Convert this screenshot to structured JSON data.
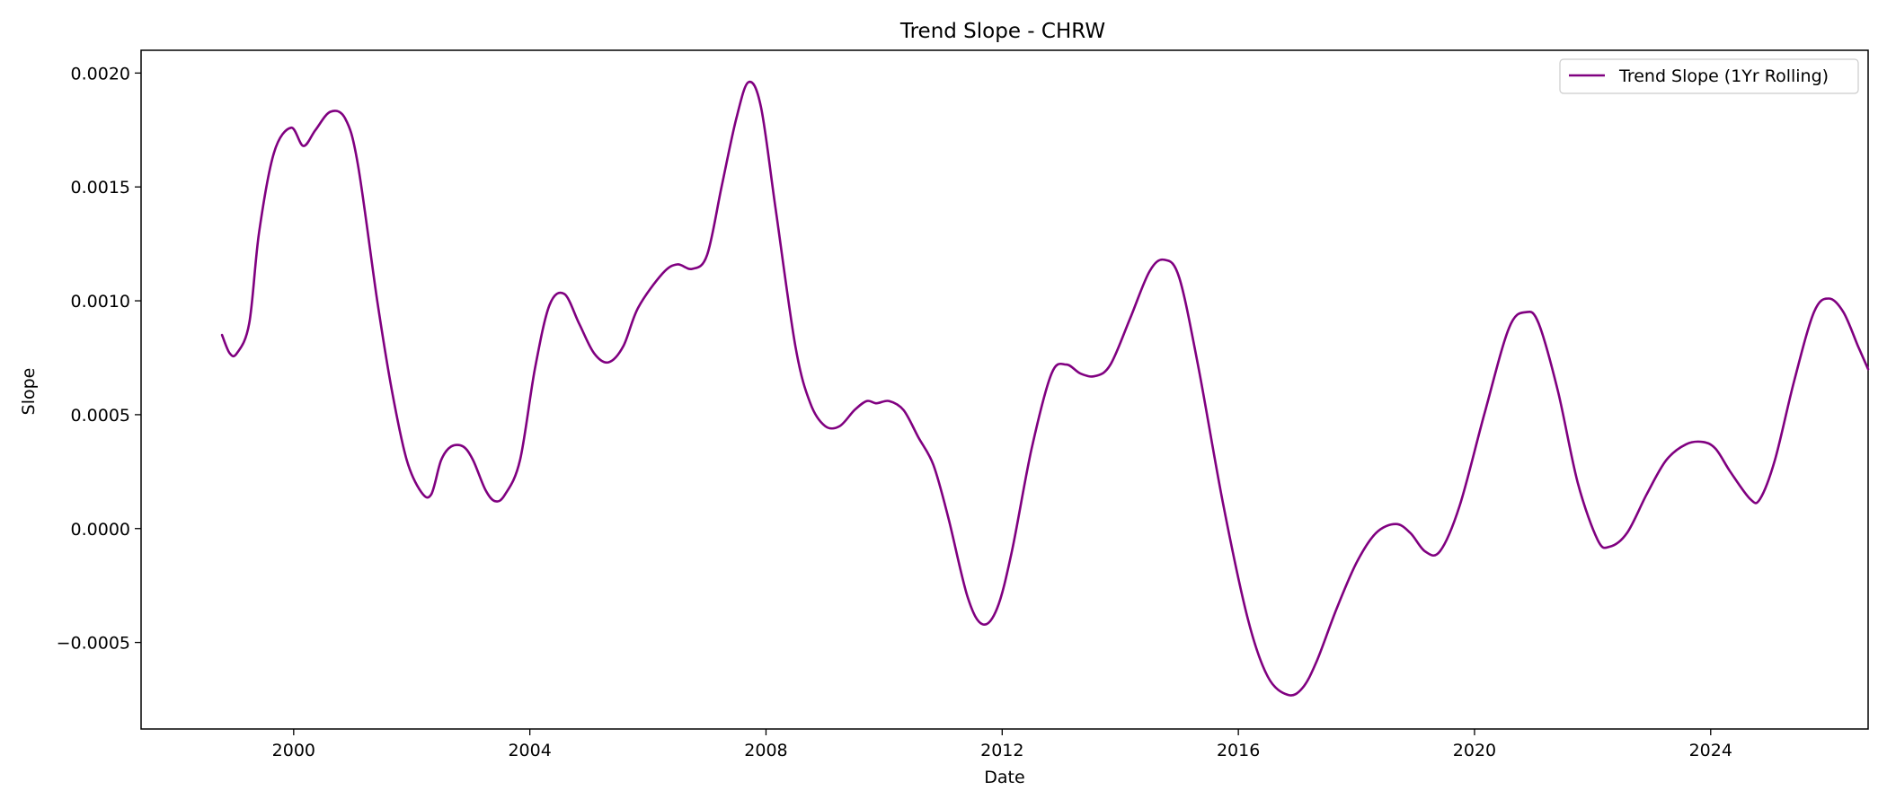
{
  "chart_data": {
    "type": "line",
    "title": "Trend Slope - CHRW",
    "xlabel": "Date",
    "ylabel": "Slope",
    "xlim": [
      "1997-06-01",
      "2026-09-01"
    ],
    "ylim": [
      -0.00088,
      0.0021
    ],
    "x_ticks": [
      "2000",
      "2004",
      "2008",
      "2012",
      "2016",
      "2020",
      "2024"
    ],
    "y_ticks": [
      -0.0005,
      0.0,
      0.0005,
      0.001,
      0.0015,
      0.002
    ],
    "y_tick_labels": [
      "−0.0005",
      "0.0000",
      "0.0005",
      "0.0010",
      "0.0015",
      "0.0020"
    ],
    "grid": false,
    "legend": "top-right",
    "series": [
      {
        "name": "Trend Slope (1Yr Rolling)",
        "color": "#800080",
        "points": [
          [
            "1998-10-15",
            0.00085
          ],
          [
            "1998-12-01",
            0.00077
          ],
          [
            "1999-01-15",
            0.00077
          ],
          [
            "1999-04-01",
            0.0009
          ],
          [
            "1999-06-01",
            0.0013
          ],
          [
            "1999-09-01",
            0.00165
          ],
          [
            "1999-12-15",
            0.00176
          ],
          [
            "2000-03-01",
            0.00168
          ],
          [
            "2000-05-15",
            0.00175
          ],
          [
            "2000-08-15",
            0.00183
          ],
          [
            "2000-11-15",
            0.0018
          ],
          [
            "2001-02-01",
            0.0016
          ],
          [
            "2001-06-01",
            0.001
          ],
          [
            "2001-09-01",
            0.0006
          ],
          [
            "2001-12-01",
            0.0003
          ],
          [
            "2002-03-01",
            0.00016
          ],
          [
            "2002-05-01",
            0.00015
          ],
          [
            "2002-07-01",
            0.0003
          ],
          [
            "2002-09-01",
            0.00036
          ],
          [
            "2002-11-15",
            0.00036
          ],
          [
            "2003-01-15",
            0.0003
          ],
          [
            "2003-04-01",
            0.00017
          ],
          [
            "2003-06-01",
            0.00012
          ],
          [
            "2003-08-01",
            0.00015
          ],
          [
            "2003-11-01",
            0.0003
          ],
          [
            "2004-02-01",
            0.0007
          ],
          [
            "2004-05-01",
            0.00098
          ],
          [
            "2004-08-01",
            0.00103
          ],
          [
            "2004-11-01",
            0.0009
          ],
          [
            "2005-02-01",
            0.00077
          ],
          [
            "2005-05-01",
            0.00073
          ],
          [
            "2005-08-01",
            0.0008
          ],
          [
            "2005-11-01",
            0.00097
          ],
          [
            "2006-04-01",
            0.00112
          ],
          [
            "2006-07-01",
            0.00116
          ],
          [
            "2006-10-01",
            0.00114
          ],
          [
            "2007-01-01",
            0.0012
          ],
          [
            "2007-04-01",
            0.0015
          ],
          [
            "2007-07-01",
            0.0018
          ],
          [
            "2007-09-15",
            0.00196
          ],
          [
            "2007-12-01",
            0.00185
          ],
          [
            "2008-03-01",
            0.0014
          ],
          [
            "2008-07-01",
            0.0008
          ],
          [
            "2008-10-01",
            0.00055
          ],
          [
            "2009-01-01",
            0.00045
          ],
          [
            "2009-04-01",
            0.00045
          ],
          [
            "2009-07-01",
            0.00052
          ],
          [
            "2009-09-15",
            0.00056
          ],
          [
            "2009-11-15",
            0.00055
          ],
          [
            "2010-02-01",
            0.00056
          ],
          [
            "2010-05-01",
            0.00052
          ],
          [
            "2010-08-01",
            0.0004
          ],
          [
            "2010-11-01",
            0.00028
          ],
          [
            "2011-02-01",
            5e-05
          ],
          [
            "2011-06-01",
            -0.0003
          ],
          [
            "2011-09-01",
            -0.00042
          ],
          [
            "2011-12-01",
            -0.00035
          ],
          [
            "2012-03-01",
            -0.0001
          ],
          [
            "2012-07-01",
            0.00035
          ],
          [
            "2012-11-01",
            0.00068
          ],
          [
            "2013-02-01",
            0.00072
          ],
          [
            "2013-05-01",
            0.00068
          ],
          [
            "2013-08-01",
            0.00067
          ],
          [
            "2013-11-01",
            0.00072
          ],
          [
            "2014-03-01",
            0.00092
          ],
          [
            "2014-07-01",
            0.00113
          ],
          [
            "2014-10-01",
            0.00118
          ],
          [
            "2015-01-01",
            0.0011
          ],
          [
            "2015-05-01",
            0.0007
          ],
          [
            "2015-10-01",
            0.0001
          ],
          [
            "2016-03-01",
            -0.0004
          ],
          [
            "2016-07-01",
            -0.00065
          ],
          [
            "2016-11-01",
            -0.00073
          ],
          [
            "2017-02-01",
            -0.0007
          ],
          [
            "2017-05-01",
            -0.00058
          ],
          [
            "2017-09-01",
            -0.00035
          ],
          [
            "2018-01-01",
            -0.00015
          ],
          [
            "2018-05-01",
            -2e-05
          ],
          [
            "2018-09-01",
            2e-05
          ],
          [
            "2018-12-01",
            -2e-05
          ],
          [
            "2019-03-01",
            -0.0001
          ],
          [
            "2019-06-01",
            -0.0001
          ],
          [
            "2019-10-01",
            0.0001
          ],
          [
            "2020-03-01",
            0.0005
          ],
          [
            "2020-08-01",
            0.00088
          ],
          [
            "2020-11-15",
            0.00095
          ],
          [
            "2021-02-01",
            0.0009
          ],
          [
            "2021-06-01",
            0.0006
          ],
          [
            "2021-10-01",
            0.0002
          ],
          [
            "2022-02-01",
            -5e-05
          ],
          [
            "2022-04-15",
            -8e-05
          ],
          [
            "2022-08-01",
            -2e-05
          ],
          [
            "2022-12-01",
            0.00015
          ],
          [
            "2023-04-01",
            0.0003
          ],
          [
            "2023-08-01",
            0.00037
          ],
          [
            "2023-11-15",
            0.00038
          ],
          [
            "2024-02-01",
            0.00035
          ],
          [
            "2024-05-01",
            0.00025
          ],
          [
            "2024-09-01",
            0.00013
          ],
          [
            "2024-11-01",
            0.00013
          ],
          [
            "2025-02-01",
            0.0003
          ],
          [
            "2025-06-01",
            0.00065
          ],
          [
            "2025-10-01",
            0.00095
          ],
          [
            "2026-01-01",
            0.00101
          ],
          [
            "2026-04-01",
            0.00095
          ],
          [
            "2026-07-01",
            0.0008
          ],
          [
            "2026-09-01",
            0.0007
          ]
        ]
      }
    ]
  }
}
